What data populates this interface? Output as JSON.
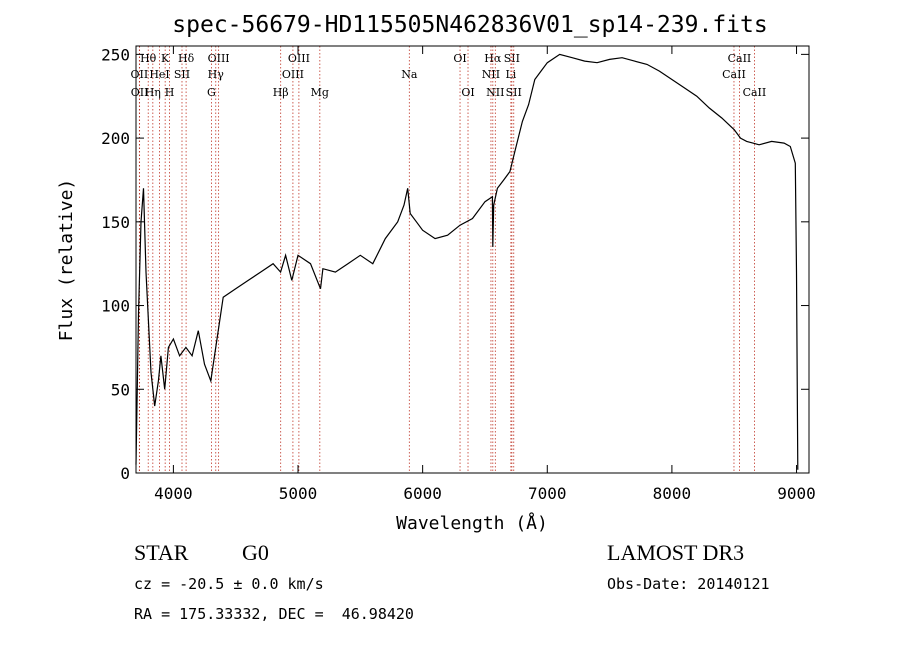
{
  "chart_data": {
    "type": "line",
    "title": "spec-56679-HD115505N462836V01_sp14-239.fits",
    "xlabel": "Wavelength (Å)",
    "ylabel": "Flux (relative)",
    "xlim": [
      3700,
      9100
    ],
    "ylim": [
      0,
      255
    ],
    "xticks": [
      4000,
      5000,
      6000,
      7000,
      8000,
      9000
    ],
    "yticks": [
      0,
      50,
      100,
      150,
      200,
      250
    ],
    "series": [
      {
        "name": "flux",
        "x": [
          3700,
          3720,
          3740,
          3760,
          3780,
          3800,
          3820,
          3850,
          3880,
          3900,
          3930,
          3960,
          4000,
          4050,
          4100,
          4150,
          4200,
          4250,
          4300,
          4350,
          4400,
          4500,
          4600,
          4700,
          4800,
          4860,
          4900,
          4950,
          5000,
          5100,
          5180,
          5200,
          5300,
          5400,
          5500,
          5600,
          5700,
          5800,
          5850,
          5880,
          5900,
          5950,
          6000,
          6100,
          6200,
          6300,
          6400,
          6500,
          6560,
          6563,
          6570,
          6600,
          6650,
          6700,
          6750,
          6800,
          6850,
          6900,
          6950,
          7000,
          7100,
          7200,
          7300,
          7400,
          7500,
          7600,
          7700,
          7800,
          7900,
          8000,
          8100,
          8200,
          8300,
          8400,
          8500,
          8550,
          8600,
          8650,
          8700,
          8800,
          8900,
          8950,
          8990,
          9000,
          9010
        ],
        "y": [
          5,
          95,
          150,
          170,
          120,
          90,
          60,
          40,
          55,
          70,
          50,
          75,
          80,
          70,
          75,
          70,
          85,
          65,
          55,
          80,
          105,
          110,
          115,
          120,
          125,
          120,
          130,
          115,
          130,
          125,
          110,
          122,
          120,
          125,
          130,
          125,
          140,
          150,
          160,
          170,
          155,
          150,
          145,
          140,
          142,
          148,
          152,
          162,
          165,
          135,
          160,
          170,
          175,
          180,
          195,
          210,
          220,
          235,
          240,
          245,
          250,
          248,
          246,
          245,
          247,
          248,
          246,
          244,
          240,
          235,
          230,
          225,
          218,
          212,
          205,
          200,
          198,
          197,
          196,
          198,
          197,
          195,
          185,
          120,
          2
        ]
      }
    ],
    "line_ids": [
      {
        "label": "Hθ",
        "x": 3798,
        "row": 1
      },
      {
        "label": "OII",
        "x": 3727,
        "row": 2
      },
      {
        "label": "OII",
        "x": 3729,
        "row": 3
      },
      {
        "label": "K",
        "x": 3934,
        "row": 1
      },
      {
        "label": "HeI",
        "x": 3889,
        "row": 2
      },
      {
        "label": "Hη",
        "x": 3835,
        "row": 3
      },
      {
        "label": "Hδ",
        "x": 4102,
        "row": 1
      },
      {
        "label": "SII",
        "x": 4069,
        "row": 2
      },
      {
        "label": "H",
        "x": 3969,
        "row": 3
      },
      {
        "label": "OIII",
        "x": 4363,
        "row": 1
      },
      {
        "label": "Hγ",
        "x": 4340,
        "row": 2
      },
      {
        "label": "G",
        "x": 4305,
        "row": 3
      },
      {
        "label": "OIII",
        "x": 5007,
        "row": 1
      },
      {
        "label": "OIII",
        "x": 4959,
        "row": 2
      },
      {
        "label": "Hβ",
        "x": 4861,
        "row": 3
      },
      {
        "label": "Mg",
        "x": 5175,
        "row": 3
      },
      {
        "label": "Na",
        "x": 5893,
        "row": 2
      },
      {
        "label": "OI",
        "x": 6300,
        "row": 1
      },
      {
        "label": "OI",
        "x": 6364,
        "row": 3
      },
      {
        "label": "Hα",
        "x": 6563,
        "row": 1
      },
      {
        "label": "SII",
        "x": 6716,
        "row": 1
      },
      {
        "label": "NII",
        "x": 6548,
        "row": 2
      },
      {
        "label": "Li",
        "x": 6708,
        "row": 2
      },
      {
        "label": "NII",
        "x": 6583,
        "row": 3
      },
      {
        "label": "SII",
        "x": 6731,
        "row": 3
      },
      {
        "label": "CaII",
        "x": 8542,
        "row": 1
      },
      {
        "label": "CaII",
        "x": 8498,
        "row": 2
      },
      {
        "label": "CaII",
        "x": 8662,
        "row": 3
      }
    ]
  },
  "info": {
    "object_class": "STAR",
    "subclass": "G0",
    "survey": "LAMOST DR3",
    "redshift": "cz = -20.5 ± 0.0 km/s",
    "obs_date": "Obs-Date: 20140121",
    "coords": "RA = 175.33332, DEC =  46.98420"
  }
}
